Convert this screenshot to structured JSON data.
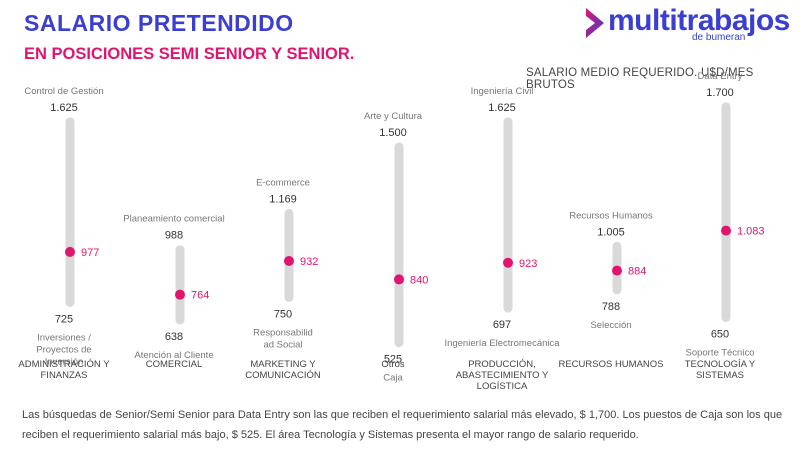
{
  "header": {
    "title": "SALARIO PRETENDIDO",
    "subtitle": "EN POSICIONES SEMI SENIOR Y SENIOR.",
    "units_note": "SALARIO MEDIO REQUERIDO. U$D/MES BRUTOS"
  },
  "logo": {
    "word": "multitrabajos",
    "sub": "de bumeran"
  },
  "colors": {
    "title": "#3b3fd1",
    "accent": "#e0156f",
    "bar": "#d9d9d9",
    "text": "#555555"
  },
  "chart_data": {
    "type": "range-dot",
    "categories": [
      "ADMINISTRACIÓN Y FINANZAS",
      "COMERCIAL",
      "MARKETING Y COMUNICACIÓN",
      "Otros",
      "PRODUCCIÓN, ABASTECIMIENTO Y LOGÍSTICA",
      "RECURSOS HUMANOS",
      "TECNOLOGÍA Y SISTEMAS"
    ],
    "series": [
      {
        "category_lines": [
          "ADMINISTRACIÓN Y",
          "FINANZAS"
        ],
        "max_position": "Control de Gestión",
        "max": 1625,
        "max_label": "1.625",
        "min_position_lines": [
          "Inversiones /",
          "Proyectos de",
          "Inversión"
        ],
        "min": 725,
        "min_label": "725",
        "mean": 977,
        "mean_label": "977"
      },
      {
        "category_lines": [
          "COMERCIAL"
        ],
        "max_position": "Planeamiento comercial",
        "max": 988,
        "max_label": "988",
        "min_position_lines": [
          "Atención al Cliente"
        ],
        "min": 638,
        "min_label": "638",
        "mean": 764,
        "mean_label": "764"
      },
      {
        "category_lines": [
          "MARKETING Y",
          "COMUNICACIÓN"
        ],
        "max_position": "E-commerce",
        "max": 1169,
        "max_label": "1.169",
        "min_position_lines": [
          "Responsabilid",
          "ad Social"
        ],
        "min": 750,
        "min_label": "750",
        "mean": 932,
        "mean_label": "932"
      },
      {
        "category_lines": [
          "Otros"
        ],
        "max_position": "Arte y Cultura",
        "max": 1500,
        "max_label": "1.500",
        "min_position_lines": [
          "Caja"
        ],
        "min": 525,
        "min_label": "525",
        "mean": 840,
        "mean_label": "840"
      },
      {
        "category_lines": [
          "PRODUCCIÓN,",
          "ABASTECIMIENTO Y",
          "LOGÍSTICA"
        ],
        "max_position": "Ingeniería Civil",
        "max": 1625,
        "max_label": "1.625",
        "min_position_lines": [
          "Ingeniería Electromecánica"
        ],
        "min": 697,
        "min_label": "697",
        "mean": 923,
        "mean_label": "923"
      },
      {
        "category_lines": [
          "RECURSOS HUMANOS"
        ],
        "max_position": "Recursos Humanos",
        "max": 1005,
        "max_label": "1.005",
        "min_position_lines": [
          "Selección"
        ],
        "min": 788,
        "min_label": "788",
        "mean": 884,
        "mean_label": "884"
      },
      {
        "category_lines": [
          "TECNOLOGÍA Y",
          "SISTEMAS"
        ],
        "max_position": "Data Entry",
        "max": 1700,
        "max_label": "1.700",
        "min_position_lines": [
          "Soporte Técnico"
        ],
        "min": 650,
        "min_label": "650",
        "mean": 1083,
        "mean_label": "1.083"
      }
    ]
  },
  "footer": {
    "text": "Las búsquedas de Senior/Semi Senior para Data Entry son las que reciben el requerimiento salarial más elevado, $ 1,700. Los puestos de Caja son los que reciben el requerimiento salarial más bajo, $ 525.  El área Tecnología y Sistemas presenta el mayor rango de salario requerido."
  }
}
